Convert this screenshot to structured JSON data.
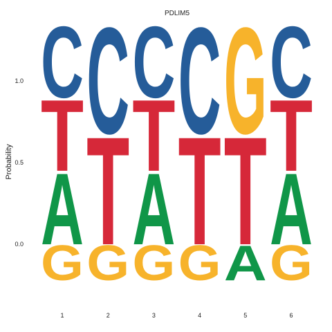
{
  "chart_data": {
    "type": "sequence-logo",
    "title": "PDLIM5",
    "ylabel": "Probability",
    "xlabel": "",
    "y_ticks": [
      "0.0",
      "0.5",
      "1.0"
    ],
    "y_tick_values": [
      0.0,
      0.5,
      1.0
    ],
    "positions": [
      "1",
      "2",
      "3",
      "4",
      "5",
      "6"
    ],
    "colors": {
      "A": "#109648",
      "C": "#255C99",
      "G": "#F7B32B",
      "T": "#D62839"
    },
    "stacks": [
      [
        {
          "letter": "G",
          "value": 0.22
        },
        {
          "letter": "A",
          "value": 0.45
        },
        {
          "letter": "T",
          "value": 0.45
        },
        {
          "letter": "C",
          "value": 0.45
        }
      ],
      [
        {
          "letter": "G",
          "value": 0.22
        },
        {
          "letter": "T",
          "value": 0.68
        },
        {
          "letter": "C",
          "value": 0.67
        }
      ],
      [
        {
          "letter": "G",
          "value": 0.22
        },
        {
          "letter": "A",
          "value": 0.45
        },
        {
          "letter": "T",
          "value": 0.45
        },
        {
          "letter": "C",
          "value": 0.45
        }
      ],
      [
        {
          "letter": "G",
          "value": 0.22
        },
        {
          "letter": "T",
          "value": 0.68
        },
        {
          "letter": "C",
          "value": 0.67
        }
      ],
      [
        {
          "letter": "A",
          "value": 0.22
        },
        {
          "letter": "T",
          "value": 0.68
        },
        {
          "letter": "G",
          "value": 0.67
        }
      ],
      [
        {
          "letter": "G",
          "value": 0.22
        },
        {
          "letter": "A",
          "value": 0.45
        },
        {
          "letter": "T",
          "value": 0.45
        },
        {
          "letter": "C",
          "value": 0.45
        }
      ]
    ]
  }
}
